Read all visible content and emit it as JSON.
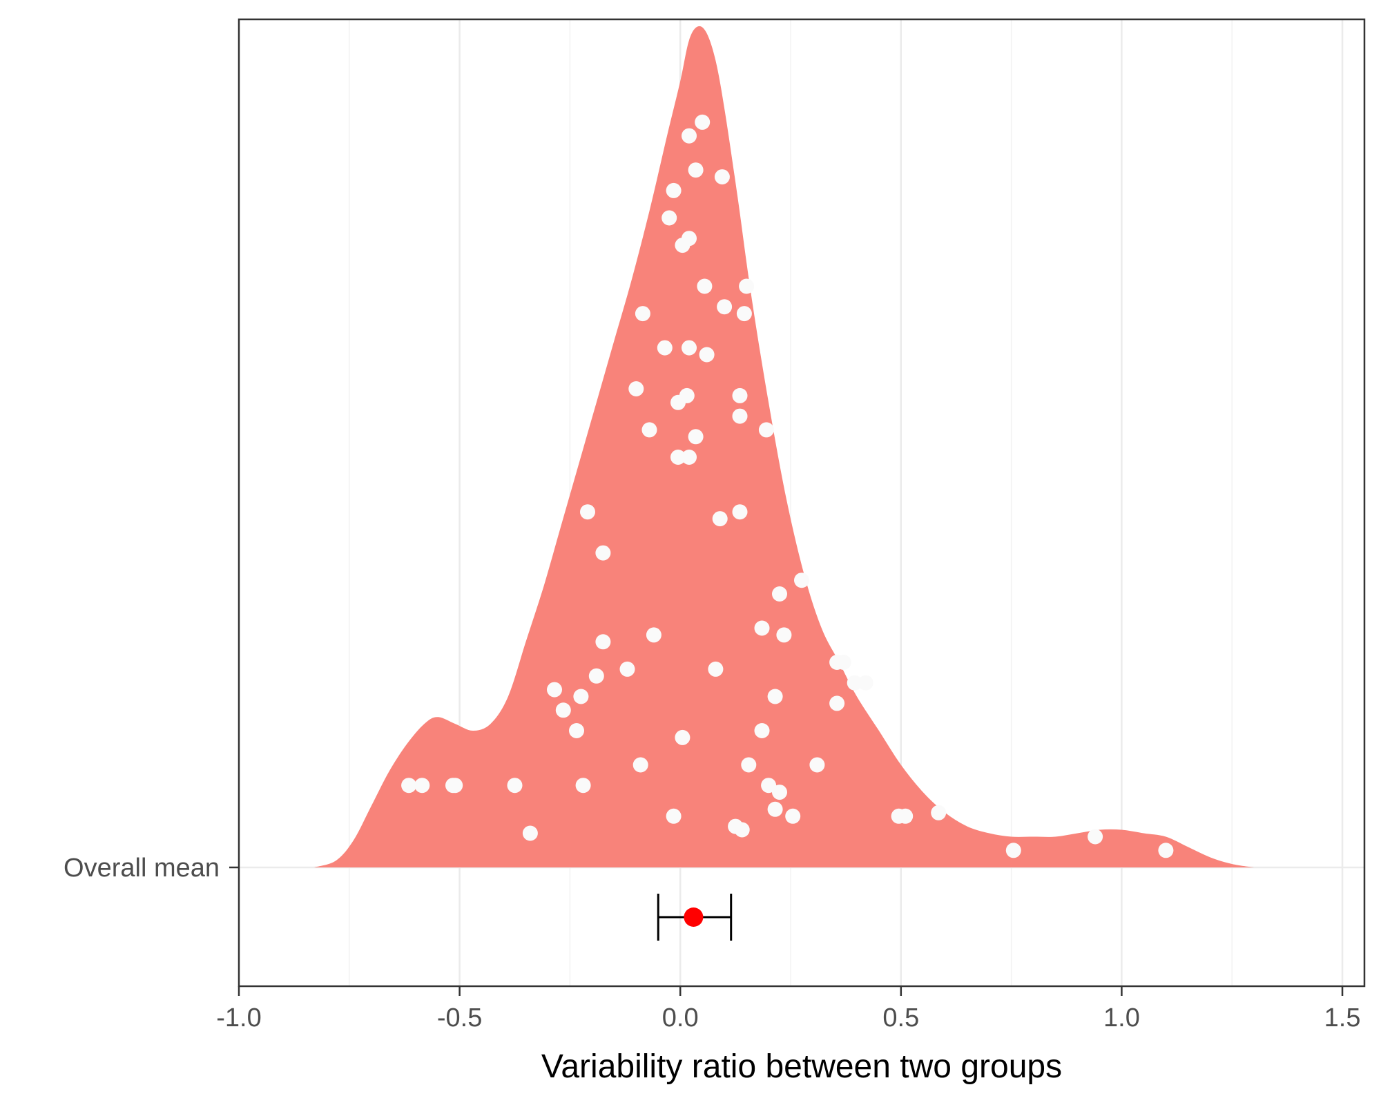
{
  "chart_data": {
    "type": "scatter",
    "subtype": "orchard-density",
    "title": "",
    "xlabel": "Variability ratio between two groups",
    "ylabel": "",
    "y_category": "Overall mean",
    "xlim": [
      -1.0,
      1.55
    ],
    "x_ticks": [
      -1.0,
      -0.5,
      0.0,
      0.5,
      1.0,
      1.5
    ],
    "x_tick_labels": [
      "-1.0",
      "-0.5",
      "0.0",
      "0.5",
      "1.0",
      "1.5"
    ],
    "grid": true,
    "legend": "none",
    "density": {
      "color": "#f8837a",
      "x": [
        -0.83,
        -0.78,
        -0.74,
        -0.7,
        -0.66,
        -0.62,
        -0.58,
        -0.55,
        -0.51,
        -0.47,
        -0.43,
        -0.39,
        -0.35,
        -0.31,
        -0.27,
        -0.23,
        -0.19,
        -0.15,
        -0.11,
        -0.07,
        -0.03,
        0.0,
        0.02,
        0.04,
        0.06,
        0.08,
        0.1,
        0.13,
        0.16,
        0.2,
        0.24,
        0.28,
        0.32,
        0.36,
        0.4,
        0.45,
        0.5,
        0.55,
        0.6,
        0.65,
        0.7,
        0.75,
        0.8,
        0.85,
        0.9,
        0.95,
        1.0,
        1.05,
        1.1,
        1.15,
        1.2,
        1.25,
        1.3
      ],
      "height": [
        0.0,
        0.01,
        0.04,
        0.09,
        0.14,
        0.18,
        0.21,
        0.22,
        0.21,
        0.2,
        0.21,
        0.25,
        0.33,
        0.41,
        0.5,
        0.59,
        0.68,
        0.77,
        0.86,
        0.96,
        1.07,
        1.15,
        1.21,
        1.23,
        1.22,
        1.18,
        1.11,
        0.98,
        0.84,
        0.68,
        0.54,
        0.43,
        0.35,
        0.3,
        0.25,
        0.2,
        0.15,
        0.11,
        0.08,
        0.06,
        0.05,
        0.045,
        0.045,
        0.045,
        0.05,
        0.055,
        0.055,
        0.05,
        0.045,
        0.03,
        0.015,
        0.005,
        0.0
      ]
    },
    "points": {
      "color": "#fafafa",
      "x": [
        0.05,
        0.02,
        0.035,
        0.095,
        -0.015,
        -0.025,
        0.02,
        0.005,
        0.15,
        0.055,
        -0.085,
        0.1,
        0.145,
        -0.035,
        0.02,
        0.06,
        -0.1,
        0.015,
        -0.005,
        0.135,
        0.135,
        -0.07,
        0.035,
        0.195,
        -0.005,
        0.02,
        -0.21,
        0.09,
        0.135,
        -0.175,
        0.275,
        0.225,
        0.185,
        0.235,
        -0.06,
        -0.175,
        0.355,
        0.37,
        -0.12,
        0.08,
        -0.19,
        0.395,
        0.42,
        -0.285,
        -0.225,
        0.215,
        0.355,
        -0.265,
        -0.235,
        0.185,
        0.005,
        -0.09,
        0.31,
        0.155,
        -0.615,
        -0.585,
        -0.515,
        -0.51,
        -0.375,
        -0.22,
        0.2,
        0.225,
        0.585,
        0.215,
        0.255,
        0.51,
        0.495,
        -0.015,
        0.125,
        0.14,
        -0.34,
        0.94,
        0.755,
        1.1
      ],
      "y": [
        1.09,
        1.07,
        1.02,
        1.01,
        0.99,
        0.95,
        0.92,
        0.91,
        0.85,
        0.85,
        0.81,
        0.82,
        0.81,
        0.76,
        0.76,
        0.75,
        0.7,
        0.69,
        0.68,
        0.69,
        0.66,
        0.64,
        0.63,
        0.64,
        0.6,
        0.6,
        0.52,
        0.51,
        0.52,
        0.46,
        0.42,
        0.4,
        0.35,
        0.34,
        0.34,
        0.33,
        0.3,
        0.3,
        0.29,
        0.29,
        0.28,
        0.27,
        0.27,
        0.26,
        0.25,
        0.25,
        0.24,
        0.23,
        0.2,
        0.2,
        0.19,
        0.15,
        0.15,
        0.15,
        0.12,
        0.12,
        0.12,
        0.12,
        0.12,
        0.12,
        0.12,
        0.11,
        0.08,
        0.085,
        0.075,
        0.075,
        0.075,
        0.075,
        0.06,
        0.055,
        0.05,
        0.045,
        0.025,
        0.025
      ]
    },
    "overall_mean": {
      "estimate": 0.03,
      "ci_lower": -0.05,
      "ci_upper": 0.115,
      "color": "#ff0000"
    }
  }
}
